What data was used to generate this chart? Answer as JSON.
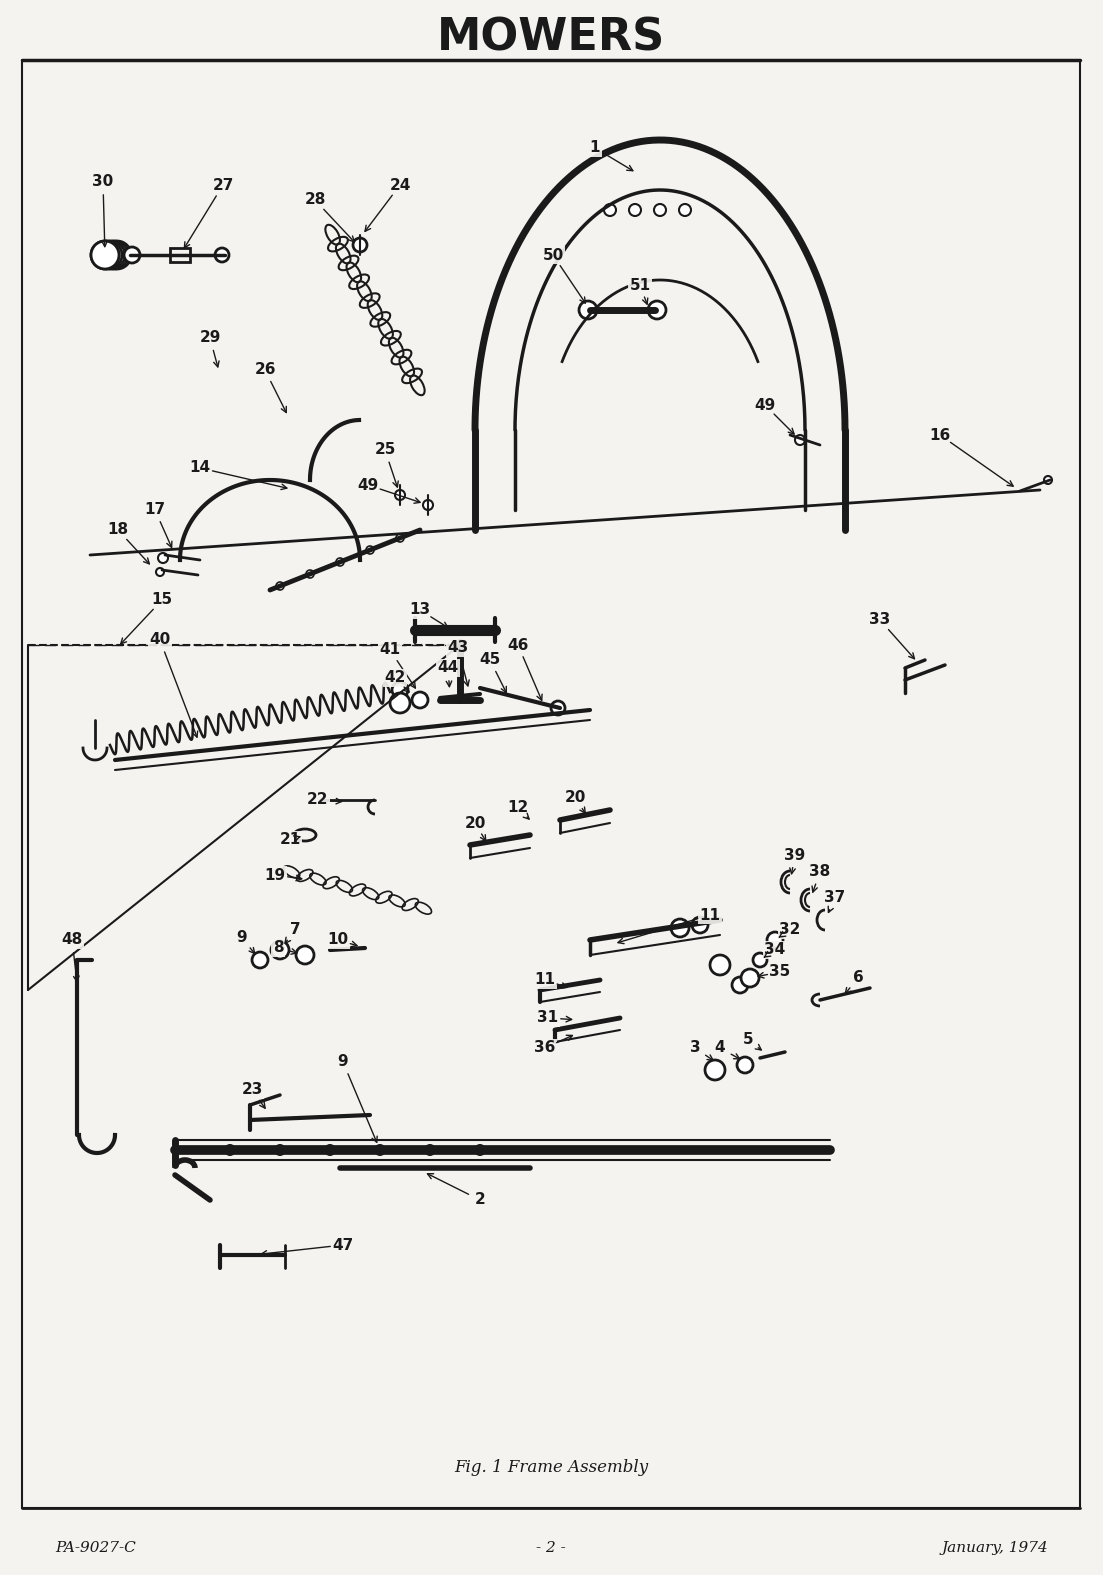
{
  "title": "MOWERS",
  "fig_caption": "Fig. 1 Frame Assembly",
  "footer_left": "PA-9027-C",
  "footer_center": "- 2 -",
  "footer_right": "January, 1974",
  "bg_color": "#f5f3f0",
  "line_color": "#1a1a1a",
  "title_fontsize": 30,
  "caption_fontsize": 12,
  "footer_fontsize": 11,
  "label_fontsize": 11
}
